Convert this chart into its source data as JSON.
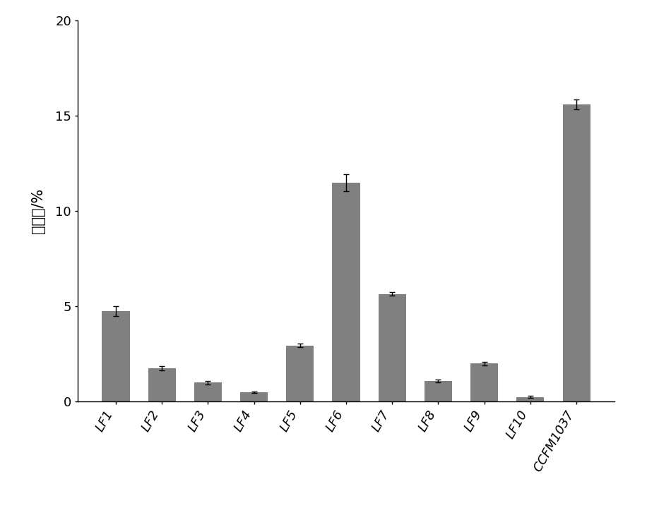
{
  "categories": [
    "LF1",
    "LF2",
    "LF3",
    "LF4",
    "LF5",
    "LF6",
    "LF7",
    "LF8",
    "LF9",
    "LF10",
    "CCFM1037"
  ],
  "values": [
    4.75,
    1.75,
    1.0,
    0.5,
    2.95,
    11.5,
    5.65,
    1.1,
    2.0,
    0.25,
    15.6
  ],
  "errors": [
    0.25,
    0.1,
    0.08,
    0.05,
    0.1,
    0.45,
    0.1,
    0.07,
    0.08,
    0.05,
    0.25
  ],
  "bar_color": "#808080",
  "ylabel": "存活率/%",
  "ylim": [
    0,
    20
  ],
  "yticks": [
    0,
    5,
    10,
    15,
    20
  ],
  "background_color": "#ffffff",
  "figure_width": 9.16,
  "figure_height": 7.3,
  "dpi": 100
}
